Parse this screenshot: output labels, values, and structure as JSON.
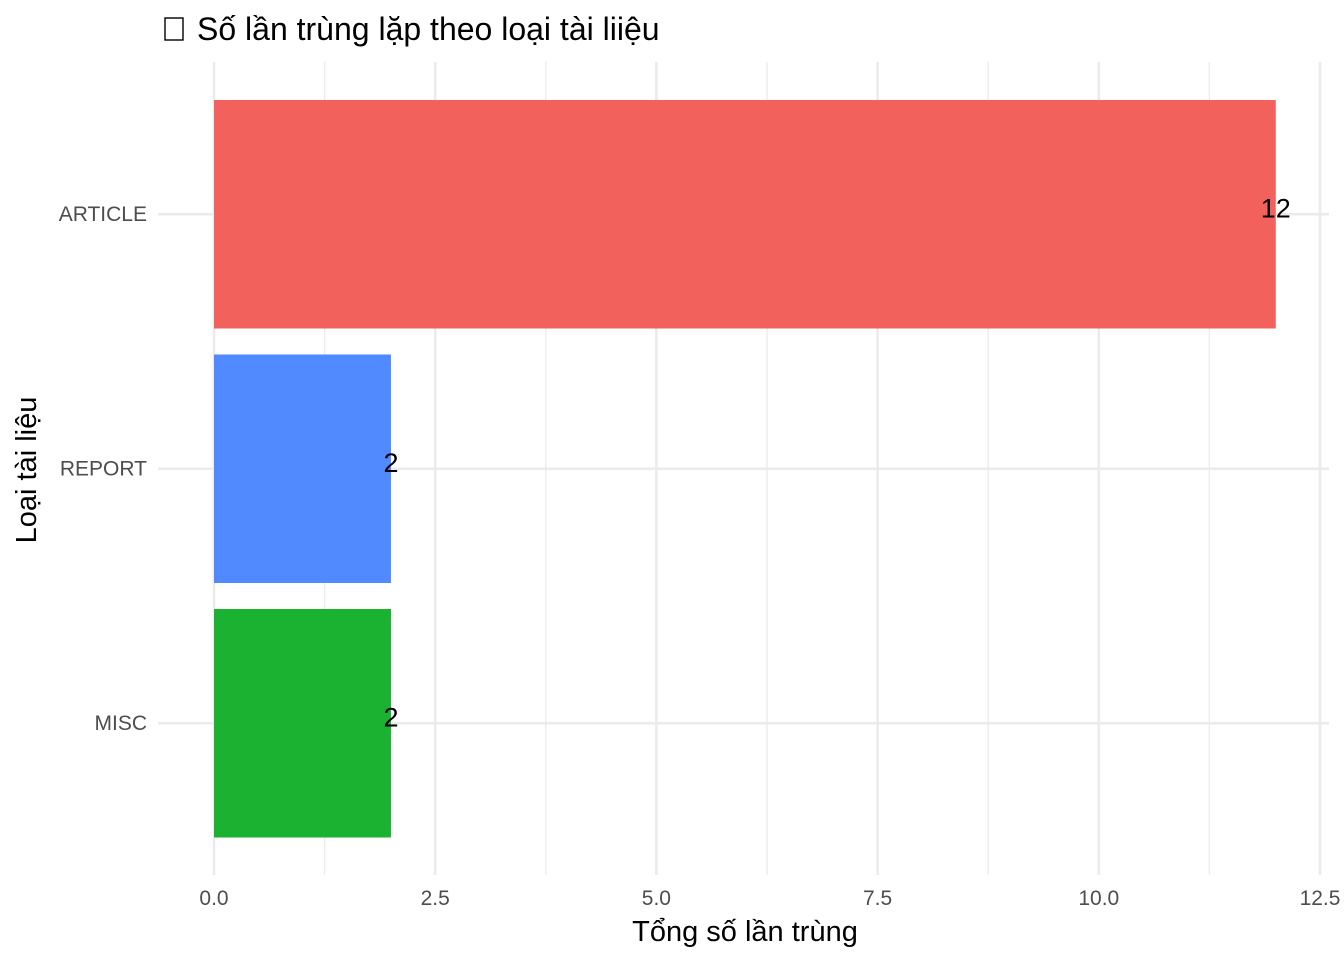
{
  "chart_data": {
    "type": "bar",
    "orientation": "horizontal",
    "title": "Số lần trùng lặp theo loại tài liiệu",
    "title_icon": "missing-glyph-box",
    "xlabel": "Tổng số lần trùng",
    "ylabel": "Loại tài liệu",
    "categories": [
      "ARTICLE",
      "REPORT",
      "MISC"
    ],
    "values": [
      12,
      2,
      2
    ],
    "value_labels": [
      "12",
      "2",
      "2"
    ],
    "colors": [
      "#F2615C",
      "#5189FF",
      "#1AB230"
    ],
    "xlim": [
      0,
      12.5
    ],
    "x_ticks": [
      0,
      2.5,
      5,
      7.5,
      10,
      12.5
    ],
    "x_tick_labels": [
      "0.0",
      "2.5",
      "5.0",
      "7.5",
      "10.0",
      "12.5"
    ],
    "grid": true,
    "legend": "none"
  }
}
